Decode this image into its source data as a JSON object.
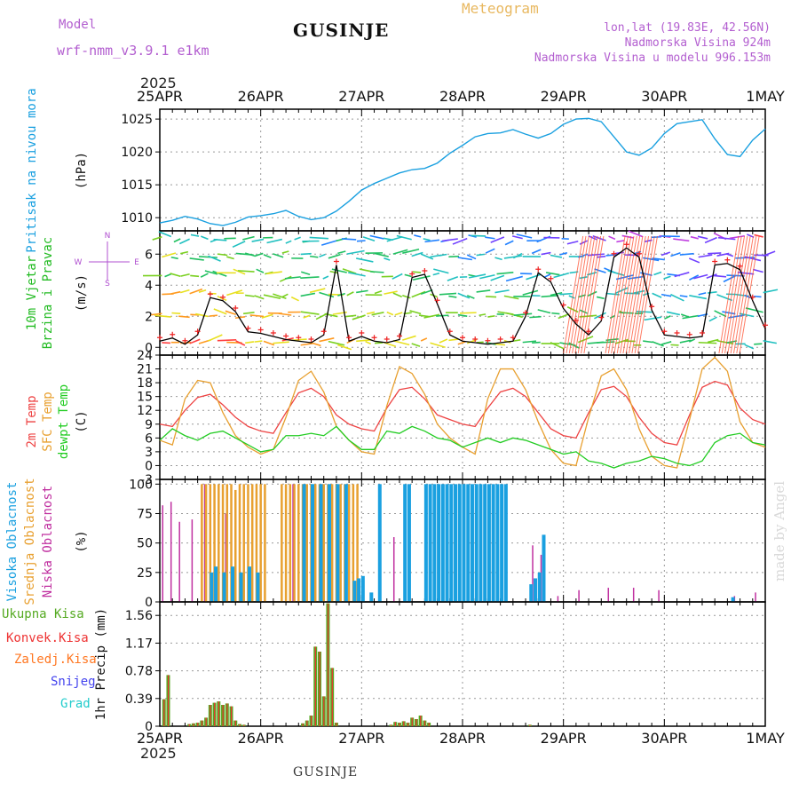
{
  "header": {
    "model_label": "Model",
    "model_name": "wrf-nmm_v3.9.1 e1km",
    "station": "GUSINJE",
    "meteogram": "Meteogram",
    "lonlat": "lon,lat (19.83E, 42.56N)",
    "elevation": "Nadmorska Visina 924m",
    "model_elevation": "Nadmorska Visina u modelu 996.153m"
  },
  "footer": {
    "station": "GUSINJE",
    "year_bottom": "2025",
    "year_top": "2025"
  },
  "watermark": "made by Angel",
  "colors": {
    "pressure": "#1aa0e0",
    "wind_label": "#22bb22",
    "wind_compass": "#b050d0",
    "temp2m": "#ee4444",
    "sfc": "#e8a030",
    "dewpt": "#22cc22",
    "cloud_high": "#1aa0e0",
    "cloud_mid": "#e8a030",
    "cloud_low": "#c030a0",
    "precip_total": "#55aa22",
    "precip_conv": "#ee3333",
    "precip_frz": "#ff7722",
    "snow": "#4444ee",
    "grad": "#22cccc"
  },
  "chart_data": [
    {
      "type": "line",
      "panel": "pressure",
      "x_labels": [
        "25APR",
        "26APR",
        "27APR",
        "28APR",
        "29APR",
        "30APR",
        "1MAY"
      ],
      "ylim": [
        1008,
        1026.5
      ],
      "yticks": [
        1010,
        1015,
        1020,
        1025
      ],
      "ylabel_left": "Pritisak na nivou mora",
      "ylabel_unit": "(hPa)",
      "grid": true,
      "x_hours": [
        0,
        3,
        6,
        9,
        12,
        15,
        18,
        21,
        24,
        27,
        30,
        33,
        36,
        39,
        42,
        45,
        48,
        51,
        54,
        57,
        60,
        63,
        66,
        69,
        72,
        75,
        78,
        81,
        84,
        87,
        90,
        93,
        96,
        99,
        102,
        105,
        108,
        111,
        114,
        117,
        120,
        123,
        126,
        129,
        132,
        135,
        138,
        141,
        144
      ],
      "series": [
        {
          "values": [
            1009.2,
            1009.6,
            1010.2,
            1009.8,
            1009.1,
            1008.8,
            1009.3,
            1010.1,
            1010.3,
            1010.6,
            1011.1,
            1010.2,
            1009.7,
            1010.0,
            1011.0,
            1012.5,
            1014.2,
            1015.2,
            1016.0,
            1016.8,
            1017.3,
            1017.5,
            1018.3,
            1019.8,
            1021.0,
            1022.3,
            1022.8,
            1022.9,
            1023.4,
            1022.7,
            1022.1,
            1022.8,
            1024.2,
            1025.0,
            1025.1,
            1024.6,
            1022.3,
            1020.0,
            1019.5,
            1020.6,
            1022.8,
            1024.3,
            1024.6,
            1024.9,
            1022.0,
            1019.6,
            1019.3,
            1021.8,
            1023.5
          ]
        }
      ]
    },
    {
      "type": "line",
      "panel": "wind",
      "ylim": [
        -0.5,
        7.5
      ],
      "yticks": [
        0,
        2,
        4,
        6
      ],
      "ylabel_left_1": "10m Vjetar",
      "ylabel_left_2": "Brzina i Pravac",
      "ylabel_unit": "(m/s)",
      "compass": {
        "n": "N",
        "s": "S",
        "w": "W",
        "e": "E"
      },
      "x_hours": [
        0,
        3,
        6,
        9,
        12,
        15,
        18,
        21,
        24,
        27,
        30,
        33,
        36,
        39,
        42,
        45,
        48,
        51,
        54,
        57,
        60,
        63,
        66,
        69,
        72,
        75,
        78,
        81,
        84,
        87,
        90,
        93,
        96,
        99,
        102,
        105,
        108,
        111,
        114,
        117,
        120,
        123,
        126,
        129,
        132,
        135,
        138,
        141,
        144
      ],
      "series": [
        {
          "name": "speed",
          "values": [
            0.4,
            0.6,
            0.2,
            0.8,
            3.2,
            3.0,
            2.3,
            1.0,
            0.9,
            0.7,
            0.5,
            0.4,
            0.3,
            0.8,
            5.3,
            0.4,
            0.7,
            0.4,
            0.3,
            0.5,
            4.5,
            4.7,
            2.8,
            0.8,
            0.4,
            0.3,
            0.2,
            0.3,
            0.4,
            2.0,
            4.8,
            4.2,
            2.5,
            1.5,
            0.8,
            1.7,
            5.8,
            6.4,
            5.8,
            2.4,
            0.8,
            0.7,
            0.6,
            0.7,
            5.3,
            5.4,
            5.0,
            3.0,
            1.2
          ]
        }
      ]
    },
    {
      "type": "line",
      "panel": "temperature",
      "ylim": [
        -3,
        24
      ],
      "yticks": [
        -3,
        0,
        3,
        6,
        9,
        12,
        15,
        18,
        21,
        24
      ],
      "ylabel_left_1": "2m Temp",
      "ylabel_left_2": "SFC Temp",
      "ylabel_left_3": "dewpt Temp",
      "ylabel_unit": "(C)",
      "x_hours": [
        0,
        3,
        6,
        9,
        12,
        15,
        18,
        21,
        24,
        27,
        30,
        33,
        36,
        39,
        42,
        45,
        48,
        51,
        54,
        57,
        60,
        63,
        66,
        69,
        72,
        75,
        78,
        81,
        84,
        87,
        90,
        93,
        96,
        99,
        102,
        105,
        108,
        111,
        114,
        117,
        120,
        123,
        126,
        129,
        132,
        135,
        138,
        141,
        144
      ],
      "series": [
        {
          "name": "2m Temp",
          "values": [
            9.0,
            8.5,
            12.0,
            14.8,
            15.5,
            13.2,
            10.5,
            8.5,
            7.5,
            7.0,
            11.5,
            15.8,
            16.8,
            15.0,
            11.0,
            9.0,
            8.0,
            7.5,
            12.5,
            16.5,
            17.0,
            14.5,
            11.0,
            10.0,
            9.0,
            8.5,
            12.5,
            16.0,
            16.8,
            15.0,
            11.5,
            8.0,
            6.5,
            6.0,
            11.5,
            16.5,
            17.2,
            15.0,
            10.5,
            7.0,
            5.0,
            4.5,
            11.0,
            17.0,
            18.3,
            17.5,
            12.5,
            10.0,
            9.0
          ]
        },
        {
          "name": "SFC Temp",
          "values": [
            5.5,
            4.5,
            14.5,
            18.5,
            18.0,
            11.5,
            6.5,
            4.0,
            2.5,
            3.5,
            10.5,
            18.5,
            20.5,
            16.0,
            8.5,
            5.5,
            3.0,
            2.5,
            13.0,
            21.5,
            20.0,
            15.5,
            9.0,
            6.0,
            4.0,
            2.5,
            14.5,
            21.0,
            21.0,
            16.5,
            9.5,
            3.5,
            0.5,
            0.0,
            10.5,
            19.5,
            21.0,
            16.5,
            8.0,
            2.0,
            0.0,
            -0.5,
            10.0,
            21.0,
            23.5,
            20.5,
            9.5,
            5.0,
            4.0
          ]
        },
        {
          "name": "dewpt Temp",
          "values": [
            5.5,
            8.0,
            6.5,
            5.5,
            7.0,
            7.5,
            6.0,
            4.5,
            3.0,
            3.5,
            6.5,
            6.5,
            7.0,
            6.5,
            8.5,
            5.5,
            3.5,
            3.5,
            7.5,
            7.0,
            8.5,
            7.5,
            6.0,
            5.5,
            4.0,
            5.0,
            6.0,
            5.0,
            6.0,
            5.5,
            4.5,
            3.5,
            2.5,
            3.0,
            1.0,
            0.5,
            -0.5,
            0.5,
            1.0,
            2.0,
            1.5,
            0.5,
            0.0,
            1.0,
            5.0,
            6.5,
            7.0,
            5.0,
            4.5
          ]
        }
      ]
    },
    {
      "type": "bar",
      "panel": "clouds",
      "ylim": [
        0,
        104
      ],
      "yticks": [
        0,
        25,
        50,
        75,
        100
      ],
      "ylabel_left_1": "Visoka Oblacnost",
      "ylabel_left_2": "Srednja Oblacnost",
      "ylabel_left_3": "Niska Oblacnost",
      "ylabel_unit": "(%)",
      "series": [
        {
          "name": "Niska Oblacnost",
          "x_hours": [
            1,
            3,
            5,
            8,
            11,
            16,
            32,
            39,
            56,
            89,
            91,
            95,
            100,
            107,
            113,
            119,
            137,
            142
          ],
          "values": [
            82,
            85,
            68,
            70,
            100,
            75,
            100,
            100,
            55,
            48,
            40,
            5,
            10,
            12,
            12,
            10,
            5,
            8
          ]
        },
        {
          "name": "Srednja Oblacnost",
          "x_hours": [
            10,
            11,
            12,
            13,
            14,
            15,
            16,
            17,
            18,
            19,
            20,
            21,
            22,
            23,
            24,
            25,
            29,
            30,
            31,
            32,
            33,
            34,
            35,
            36,
            37,
            38,
            39,
            40,
            41,
            42,
            43,
            44,
            45,
            46,
            47
          ],
          "values": [
            100,
            100,
            100,
            100,
            100,
            100,
            100,
            100,
            95,
            100,
            100,
            100,
            100,
            100,
            100,
            100,
            100,
            100,
            100,
            100,
            100,
            100,
            100,
            100,
            100,
            100,
            100,
            100,
            100,
            100,
            100,
            100,
            100,
            100,
            100
          ]
        },
        {
          "name": "Visoka Oblacnost",
          "x_hours": [
            12,
            13,
            15,
            17,
            19,
            21,
            23,
            34,
            36,
            38,
            40,
            42,
            44,
            46,
            47,
            48,
            50,
            52,
            58,
            59,
            63,
            64,
            65,
            66,
            67,
            68,
            69,
            70,
            71,
            72,
            73,
            74,
            75,
            76,
            77,
            78,
            79,
            80,
            81,
            82,
            88,
            89,
            90,
            91,
            136
          ],
          "values": [
            25,
            30,
            25,
            30,
            25,
            30,
            25,
            100,
            100,
            100,
            100,
            100,
            100,
            18,
            20,
            22,
            8,
            100,
            100,
            100,
            100,
            100,
            100,
            100,
            100,
            100,
            100,
            100,
            100,
            100,
            100,
            100,
            100,
            100,
            100,
            100,
            100,
            100,
            100,
            100,
            15,
            20,
            25,
            57,
            4
          ]
        }
      ]
    },
    {
      "type": "bar",
      "panel": "precipitation",
      "ylim": [
        0,
        1.75
      ],
      "yticks": [
        0,
        0.39,
        0.78,
        1.17,
        1.56
      ],
      "ytick_labels": [
        "0",
        "0.39",
        "0.78",
        "1.17",
        "1.56"
      ],
      "ylabel_unit": "1hr Precip (mm)",
      "legend": [
        "Ukupna Kisa",
        "Konvek.Kisa",
        "Zaledj.Kisa",
        "Snijeg",
        "Grad"
      ],
      "x_labels": [
        "25APR",
        "26APR",
        "27APR",
        "28APR",
        "29APR",
        "30APR",
        "1MAY"
      ],
      "series": [
        {
          "name": "Ukupna Kisa",
          "x_hours": [
            1,
            2,
            7,
            8,
            9,
            10,
            11,
            12,
            13,
            14,
            15,
            16,
            17,
            18,
            19,
            20,
            34,
            35,
            36,
            37,
            38,
            39,
            40,
            41,
            42,
            55,
            56,
            57,
            58,
            59,
            60,
            61,
            62,
            63,
            64,
            88
          ],
          "values": [
            0.38,
            0.72,
            0.03,
            0.04,
            0.05,
            0.08,
            0.12,
            0.3,
            0.33,
            0.35,
            0.3,
            0.32,
            0.28,
            0.08,
            0.03,
            0.02,
            0.04,
            0.08,
            0.15,
            1.12,
            1.05,
            0.42,
            1.73,
            0.82,
            0.05,
            0.02,
            0.06,
            0.05,
            0.07,
            0.05,
            0.12,
            0.1,
            0.15,
            0.08,
            0.05,
            0.02
          ]
        }
      ]
    }
  ]
}
